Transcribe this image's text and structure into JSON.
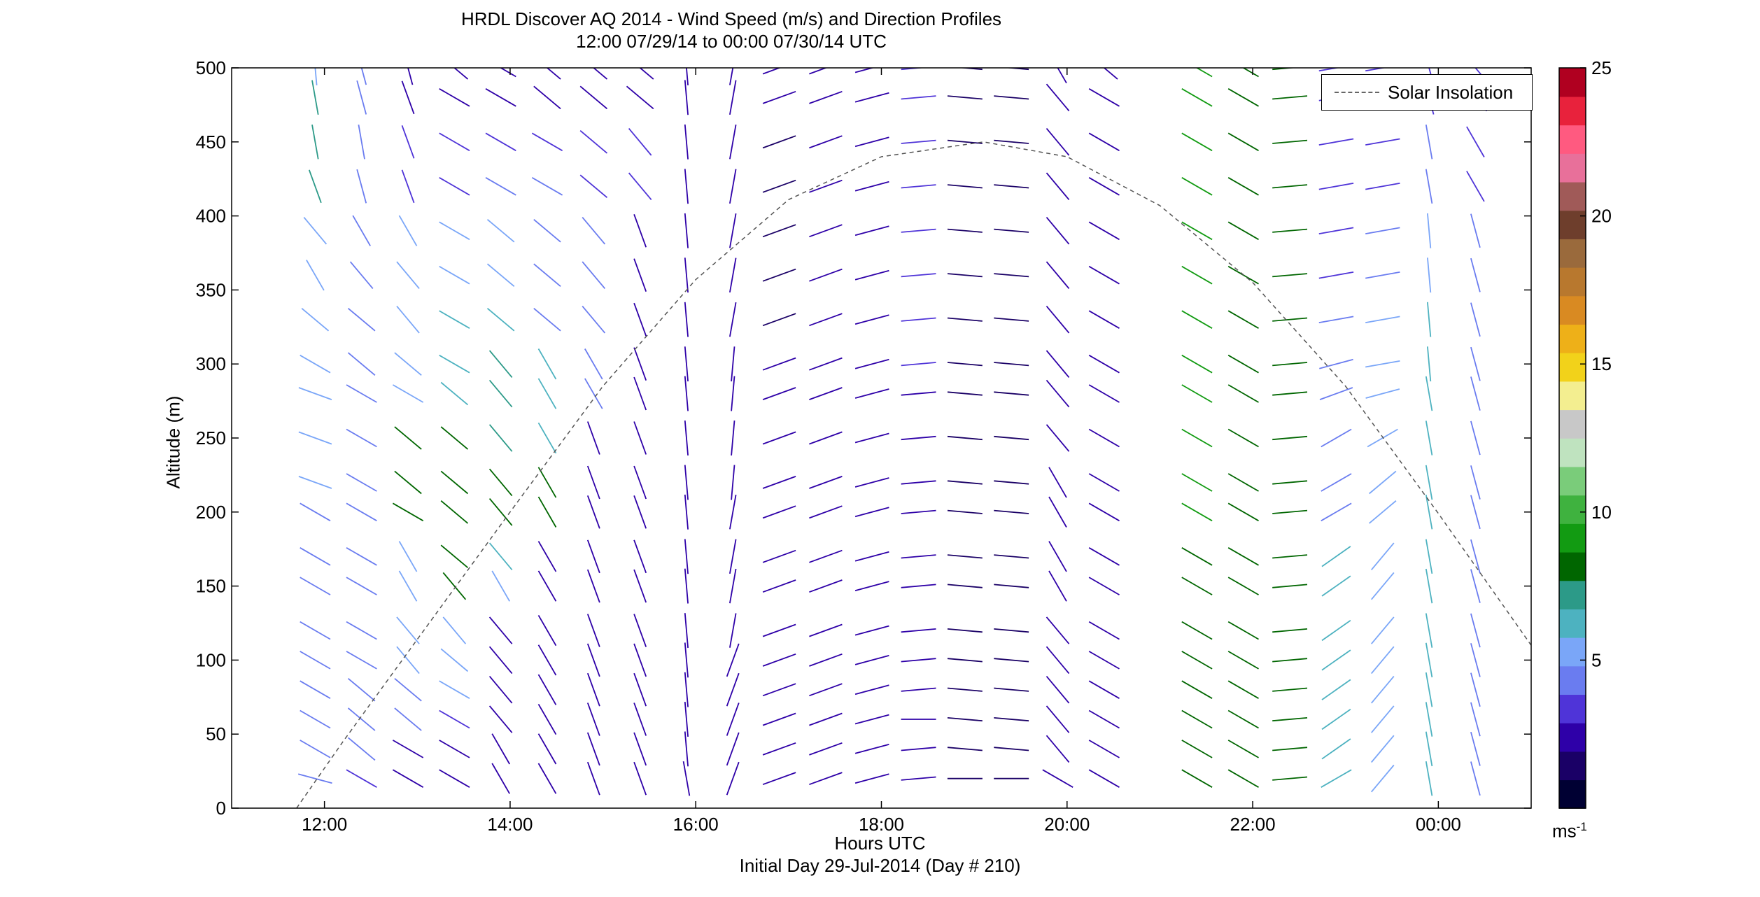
{
  "title_line1": "HRDL Discover AQ 2014 - Wind Speed (m/s) and Direction Profiles",
  "title_line2": "12:00 07/29/14 to 00:00 07/30/14  UTC",
  "chart_data": {
    "type": "wind-barb profile (wind stick plot)",
    "xlabel": "Hours UTC",
    "subtitle_bottom": "Initial Day 29-Jul-2014 (Day # 210)",
    "ylabel": "Altitude (m)",
    "xlim_hours": [
      11.0,
      25.0
    ],
    "ylim": [
      0,
      500
    ],
    "x_ticks": [
      12,
      14,
      16,
      18,
      20,
      22,
      24
    ],
    "x_tick_labels": [
      "12:00",
      "14:00",
      "16:00",
      "18:00",
      "20:00",
      "22:00",
      "00:00"
    ],
    "y_ticks": [
      0,
      50,
      100,
      150,
      200,
      250,
      300,
      350,
      400,
      450,
      500
    ],
    "grid": false,
    "legend": {
      "position": "top-right",
      "entries": [
        "Solar Insolation"
      ]
    },
    "colorbar": {
      "label": "ms",
      "label_exponent": "-1",
      "range": [
        0,
        25
      ],
      "ticks": [
        5,
        10,
        15,
        20,
        25
      ],
      "colors": [
        "#000033",
        "#1a0066",
        "#2e00a8",
        "#4f34d8",
        "#6a7cf0",
        "#7aa6f8",
        "#4db2c0",
        "#2c9a88",
        "#006600",
        "#129b12",
        "#3fb23f",
        "#7acc7a",
        "#bfe3bf",
        "#c8c8c8",
        "#f3ee90",
        "#f2d21a",
        "#eeb018",
        "#d98a22",
        "#b8782e",
        "#9a6a3c",
        "#6e3e2c",
        "#a05a58",
        "#e8709a",
        "#ff5a80",
        "#e8223c",
        "#b00020"
      ]
    },
    "solar_insolation": {
      "peak_hour": 19.1,
      "peak_altitude": 450,
      "points": [
        [
          11.7,
          0
        ],
        [
          12.2,
          45
        ],
        [
          13.0,
          114
        ],
        [
          14.0,
          200
        ],
        [
          15.0,
          285
        ],
        [
          16.0,
          357
        ],
        [
          17.0,
          411
        ],
        [
          18.0,
          440
        ],
        [
          19.1,
          450
        ],
        [
          20.0,
          440
        ],
        [
          21.0,
          407
        ],
        [
          22.0,
          355
        ],
        [
          23.0,
          285
        ],
        [
          24.0,
          199
        ],
        [
          25.0,
          110
        ]
      ]
    },
    "altitude_levels": [
      20,
      40,
      60,
      80,
      100,
      120,
      150,
      170,
      200,
      220,
      250,
      280,
      300,
      330,
      360,
      390,
      420,
      450,
      480,
      500
    ],
    "profiles": [
      {
        "hour": 11.9,
        "speed": [
          4,
          4,
          4.5,
          4.5,
          4.5,
          4.5,
          4.5,
          4.5,
          4.5,
          5,
          5,
          5,
          5,
          5,
          5,
          5,
          7,
          7,
          7,
          5
        ],
        "dir": [
          285,
          300,
          300,
          300,
          300,
          300,
          300,
          300,
          300,
          290,
          290,
          290,
          300,
          310,
          330,
          320,
          340,
          350,
          350,
          355
        ]
      },
      {
        "hour": 12.4,
        "speed": [
          3,
          4.5,
          4.5,
          4.5,
          4.5,
          4.5,
          4.5,
          4.5,
          4.5,
          4.5,
          4.5,
          4.5,
          4.5,
          4.5,
          4.5,
          4.5,
          4,
          4,
          4,
          4
        ],
        "dir": [
          300,
          310,
          310,
          310,
          300,
          300,
          300,
          300,
          300,
          300,
          300,
          300,
          310,
          310,
          320,
          330,
          345,
          350,
          345,
          345
        ]
      },
      {
        "hour": 12.9,
        "speed": [
          2,
          2,
          4.5,
          4.5,
          5,
          5,
          5,
          5,
          8,
          8,
          8,
          5,
          5,
          5,
          5,
          5,
          3.5,
          3.5,
          2.5,
          2.5
        ],
        "dir": [
          300,
          300,
          310,
          310,
          320,
          320,
          330,
          330,
          300,
          310,
          310,
          300,
          310,
          320,
          320,
          330,
          340,
          340,
          340,
          345
        ]
      },
      {
        "hour": 13.4,
        "speed": [
          2,
          2,
          3,
          5,
          5,
          5,
          8,
          8,
          8,
          8,
          8,
          6,
          6,
          6,
          5,
          5,
          3,
          3,
          2.5,
          2.5
        ],
        "dir": [
          300,
          300,
          300,
          300,
          310,
          320,
          320,
          310,
          310,
          310,
          310,
          310,
          300,
          300,
          300,
          300,
          300,
          300,
          300,
          310
        ]
      },
      {
        "hour": 13.9,
        "speed": [
          2,
          2,
          2,
          2,
          2,
          2,
          5,
          6,
          8,
          8,
          7,
          7,
          7,
          6,
          5,
          5,
          4.5,
          3,
          2.5,
          2.5
        ],
        "dir": [
          330,
          330,
          320,
          320,
          320,
          320,
          330,
          320,
          320,
          320,
          320,
          320,
          320,
          310,
          310,
          310,
          300,
          300,
          300,
          300
        ]
      },
      {
        "hour": 14.4,
        "speed": [
          2,
          2,
          2,
          2,
          2,
          2,
          2,
          2,
          8,
          8,
          6,
          6,
          6,
          4.5,
          4.5,
          4.5,
          4,
          3,
          2.5,
          2
        ],
        "dir": [
          330,
          330,
          330,
          330,
          330,
          330,
          330,
          330,
          330,
          330,
          330,
          330,
          330,
          310,
          310,
          310,
          300,
          300,
          310,
          310
        ]
      },
      {
        "hour": 14.9,
        "speed": [
          2,
          2,
          2,
          2,
          2,
          2,
          2,
          2,
          2,
          2,
          2,
          4.5,
          4.5,
          4.5,
          4.5,
          4,
          3.5,
          3,
          2.5,
          2
        ],
        "dir": [
          340,
          340,
          340,
          340,
          340,
          340,
          340,
          340,
          340,
          340,
          340,
          330,
          330,
          320,
          320,
          320,
          310,
          310,
          310,
          310
        ]
      },
      {
        "hour": 15.4,
        "speed": [
          2,
          2,
          2,
          2,
          2,
          2,
          2,
          2,
          2,
          2,
          2,
          2,
          2,
          2,
          2,
          2,
          3,
          3,
          2.5,
          2
        ],
        "dir": [
          340,
          340,
          340,
          340,
          340,
          340,
          340,
          340,
          340,
          340,
          340,
          340,
          340,
          340,
          340,
          340,
          320,
          320,
          310,
          310
        ]
      },
      {
        "hour": 15.9,
        "speed": [
          2,
          2,
          2,
          2,
          2,
          2,
          2,
          2,
          2,
          2,
          2,
          2,
          2,
          2,
          2,
          2,
          2,
          2,
          2,
          2
        ],
        "dir": [
          350,
          355,
          355,
          355,
          355,
          355,
          355,
          355,
          355,
          355,
          355,
          355,
          355,
          355,
          355,
          355,
          355,
          355,
          355,
          355
        ]
      },
      {
        "hour": 16.4,
        "speed": [
          2,
          2,
          2,
          2,
          2,
          2,
          2,
          2,
          2,
          2,
          2,
          2,
          2,
          2,
          2,
          2,
          2,
          2,
          2,
          2
        ],
        "dir": [
          20,
          20,
          20,
          20,
          20,
          10,
          10,
          10,
          10,
          5,
          5,
          5,
          5,
          10,
          10,
          10,
          10,
          10,
          10,
          10
        ]
      },
      {
        "hour": 16.9,
        "speed": [
          2,
          2,
          2,
          2,
          2,
          2,
          2,
          2,
          2,
          2,
          2,
          2,
          2,
          1.5,
          1.5,
          1.5,
          1.5,
          1.5,
          2,
          2
        ],
        "dir": [
          70,
          70,
          70,
          70,
          70,
          70,
          70,
          70,
          70,
          70,
          70,
          70,
          70,
          70,
          70,
          70,
          70,
          70,
          70,
          70
        ]
      },
      {
        "hour": 17.4,
        "speed": [
          2,
          2,
          2,
          2,
          2,
          2,
          2,
          2,
          2,
          2,
          2,
          2,
          2,
          2,
          2,
          2,
          2,
          2,
          2,
          2
        ],
        "dir": [
          70,
          70,
          70,
          70,
          70,
          70,
          70,
          70,
          70,
          70,
          70,
          70,
          70,
          70,
          70,
          70,
          70,
          70,
          70,
          70
        ]
      },
      {
        "hour": 17.9,
        "speed": [
          2,
          2,
          2,
          2,
          2,
          2,
          2,
          2,
          2,
          2,
          2,
          2,
          2,
          2,
          2,
          2,
          2,
          2,
          2,
          2
        ],
        "dir": [
          75,
          75,
          75,
          75,
          75,
          75,
          75,
          75,
          75,
          75,
          75,
          75,
          75,
          75,
          75,
          75,
          75,
          75,
          75,
          75
        ]
      },
      {
        "hour": 18.4,
        "speed": [
          2,
          2,
          2,
          2,
          2,
          2,
          2,
          2,
          2,
          2,
          2,
          2,
          3,
          3,
          3,
          3,
          3,
          3,
          3,
          3
        ],
        "dir": [
          85,
          85,
          90,
          85,
          85,
          85,
          85,
          85,
          85,
          85,
          85,
          85,
          85,
          85,
          85,
          85,
          85,
          85,
          85,
          85
        ]
      },
      {
        "hour": 18.9,
        "speed": [
          1.5,
          1.5,
          1.5,
          1.5,
          1.5,
          1.5,
          1.5,
          1.5,
          1.5,
          1.5,
          1.5,
          1.5,
          1.5,
          1.5,
          1.5,
          1.5,
          1.5,
          1.5,
          1.5,
          1.5
        ],
        "dir": [
          90,
          95,
          95,
          95,
          95,
          95,
          95,
          95,
          95,
          95,
          95,
          95,
          95,
          95,
          95,
          95,
          95,
          95,
          95,
          95
        ]
      },
      {
        "hour": 19.4,
        "speed": [
          1.5,
          1.5,
          1.5,
          1.5,
          1.5,
          1.5,
          1.5,
          1.5,
          1.5,
          1.5,
          1.5,
          1.5,
          1.5,
          1.5,
          1.5,
          1.5,
          1.5,
          1.5,
          1.5,
          1.5
        ],
        "dir": [
          90,
          95,
          95,
          95,
          95,
          95,
          95,
          95,
          95,
          95,
          95,
          95,
          95,
          95,
          95,
          95,
          95,
          95,
          95,
          95
        ]
      },
      {
        "hour": 19.9,
        "speed": [
          2,
          2,
          2,
          2,
          2,
          2,
          2,
          2,
          2,
          2,
          2,
          2,
          2,
          2,
          2,
          2,
          2,
          2,
          2,
          2
        ],
        "dir": [
          300,
          320,
          320,
          320,
          320,
          320,
          330,
          330,
          330,
          330,
          320,
          320,
          320,
          320,
          320,
          320,
          320,
          320,
          320,
          330
        ]
      },
      {
        "hour": 20.4,
        "speed": [
          2,
          2,
          2,
          2,
          2,
          2,
          2,
          2,
          2,
          2,
          2,
          2,
          2,
          2,
          2,
          2,
          2,
          2,
          2,
          2
        ],
        "dir": [
          300,
          300,
          300,
          300,
          300,
          300,
          300,
          300,
          300,
          300,
          300,
          300,
          300,
          300,
          300,
          300,
          300,
          300,
          300,
          310
        ]
      },
      {
        "hour": 21.4,
        "speed": [
          8,
          8,
          8,
          8,
          8,
          8,
          8,
          8,
          9,
          9,
          9,
          9,
          9,
          9,
          9,
          9,
          9,
          9,
          9,
          9
        ],
        "dir": [
          300,
          300,
          300,
          300,
          300,
          300,
          300,
          300,
          300,
          300,
          300,
          300,
          300,
          300,
          300,
          300,
          300,
          300,
          300,
          300
        ]
      },
      {
        "hour": 21.9,
        "speed": [
          8,
          8,
          8,
          8,
          8,
          8,
          8,
          8,
          8,
          8,
          8,
          8,
          8,
          8,
          8,
          8,
          8,
          8,
          8,
          8
        ],
        "dir": [
          300,
          300,
          300,
          300,
          300,
          300,
          300,
          300,
          300,
          300,
          300,
          300,
          300,
          300,
          300,
          300,
          300,
          300,
          300,
          300
        ]
      },
      {
        "hour": 22.4,
        "speed": [
          8,
          8,
          8,
          8,
          8,
          8,
          8,
          8,
          8,
          8,
          8,
          8,
          8,
          8,
          8,
          8,
          8,
          8,
          8,
          8
        ],
        "dir": [
          85,
          85,
          85,
          85,
          85,
          85,
          85,
          85,
          85,
          85,
          85,
          85,
          85,
          85,
          85,
          85,
          85,
          85,
          85,
          85
        ]
      },
      {
        "hour": 22.9,
        "speed": [
          6,
          6,
          6,
          6,
          6,
          6,
          6,
          6,
          4.5,
          4.5,
          4.5,
          4.5,
          4.5,
          4.5,
          3,
          3,
          3,
          3,
          3,
          3
        ],
        "dir": [
          60,
          55,
          55,
          55,
          55,
          55,
          55,
          55,
          60,
          60,
          60,
          70,
          75,
          80,
          80,
          80,
          80,
          80,
          80,
          80
        ]
      },
      {
        "hour": 23.4,
        "speed": [
          5,
          5,
          5,
          5,
          5,
          5,
          5,
          5,
          5,
          5,
          5,
          5,
          5,
          5,
          4,
          4,
          3.5,
          3.5,
          3.5,
          3.5
        ],
        "dir": [
          40,
          40,
          40,
          40,
          40,
          40,
          40,
          40,
          50,
          50,
          60,
          75,
          80,
          80,
          80,
          80,
          80,
          80,
          80,
          80
        ]
      },
      {
        "hour": 23.9,
        "speed": [
          6,
          6,
          6,
          6,
          6,
          6,
          6,
          6,
          6,
          6,
          6,
          6,
          6,
          6,
          5,
          5,
          4.5,
          4.5,
          3.5,
          3.5
        ],
        "dir": [
          350,
          350,
          350,
          350,
          350,
          350,
          350,
          350,
          350,
          350,
          350,
          350,
          355,
          355,
          355,
          355,
          350,
          350,
          345,
          345
        ]
      },
      {
        "hour": 24.4,
        "speed": [
          4.5,
          4.5,
          4.5,
          4.5,
          4.5,
          4.5,
          4.5,
          4.5,
          4.5,
          4.5,
          4.5,
          4.5,
          4.5,
          4.5,
          4.5,
          4.5,
          3.5,
          3.5,
          3.5,
          3.5
        ],
        "dir": [
          345,
          345,
          345,
          345,
          345,
          345,
          345,
          345,
          345,
          345,
          345,
          345,
          345,
          345,
          345,
          345,
          330,
          330,
          320,
          320
        ]
      }
    ]
  },
  "legend_label": "Solar Insolation"
}
